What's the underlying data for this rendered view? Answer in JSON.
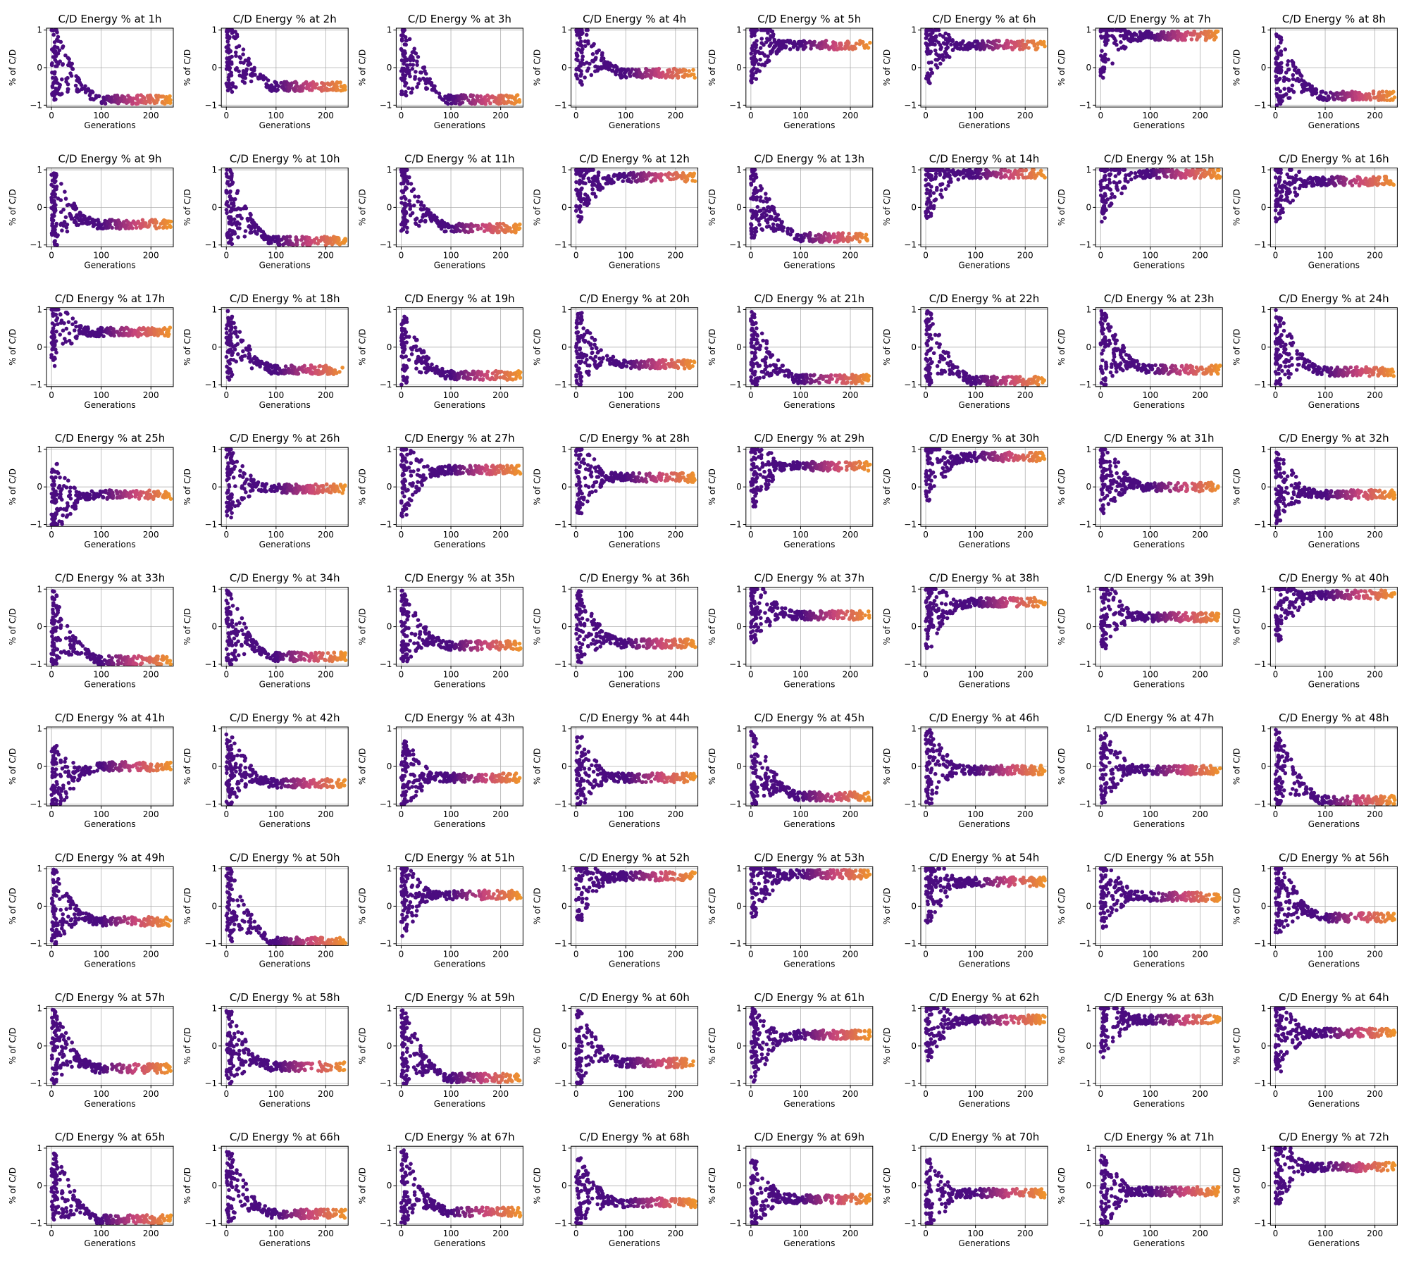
{
  "colors": {
    "early": "#4b0c80",
    "mid": "#c8467a",
    "late": "#f0952a"
  },
  "chart_data": {
    "type": "scatter",
    "rows": 9,
    "cols": 8,
    "shared": {
      "xlabel": "Generations",
      "ylabel": "% of C/D",
      "xlim": [
        -10,
        245
      ],
      "ylim": [
        -1.05,
        1.05
      ],
      "xticks": [
        0,
        100,
        200
      ],
      "yticks": [
        -1,
        0,
        1
      ],
      "grid": true,
      "generations": 240
    },
    "panels": [
      {
        "title": "C/D Energy % at 1h",
        "start": 0.2,
        "end": -0.85
      },
      {
        "title": "C/D Energy % at 2h",
        "start": 0.4,
        "end": -0.5
      },
      {
        "title": "C/D Energy % at 3h",
        "start": 0.3,
        "end": -0.85
      },
      {
        "title": "C/D Energy % at 4h",
        "start": 0.6,
        "end": -0.15
      },
      {
        "title": "C/D Energy % at 5h",
        "start": 0.6,
        "end": 0.6
      },
      {
        "title": "C/D Energy % at 6h",
        "start": 0.55,
        "end": 0.6
      },
      {
        "title": "C/D Energy % at 7h",
        "start": 0.7,
        "end": 0.85
      },
      {
        "title": "C/D Energy % at 8h",
        "start": 0.0,
        "end": -0.75
      },
      {
        "title": "C/D Energy % at 9h",
        "start": 0.0,
        "end": -0.45
      },
      {
        "title": "C/D Energy % at 10h",
        "start": 0.1,
        "end": -0.9
      },
      {
        "title": "C/D Energy % at 11h",
        "start": 0.3,
        "end": -0.55
      },
      {
        "title": "C/D Energy % at 12h",
        "start": 0.6,
        "end": 0.8
      },
      {
        "title": "C/D Energy % at 13h",
        "start": 0.2,
        "end": -0.8
      },
      {
        "title": "C/D Energy % at 14h",
        "start": 0.7,
        "end": 0.9
      },
      {
        "title": "C/D Energy % at 15h",
        "start": 0.6,
        "end": 0.9
      },
      {
        "title": "C/D Energy % at 16h",
        "start": 0.6,
        "end": 0.7
      },
      {
        "title": "C/D Energy % at 17h",
        "start": 0.5,
        "end": 0.4
      },
      {
        "title": "C/D Energy % at 18h",
        "start": 0.0,
        "end": -0.6
      },
      {
        "title": "C/D Energy % at 19h",
        "start": 0.0,
        "end": -0.75
      },
      {
        "title": "C/D Energy % at 20h",
        "start": 0.0,
        "end": -0.45
      },
      {
        "title": "C/D Energy % at 21h",
        "start": 0.0,
        "end": -0.85
      },
      {
        "title": "C/D Energy % at 22h",
        "start": 0.0,
        "end": -0.9
      },
      {
        "title": "C/D Energy % at 23h",
        "start": 0.0,
        "end": -0.6
      },
      {
        "title": "C/D Energy % at 24h",
        "start": 0.0,
        "end": -0.65
      },
      {
        "title": "C/D Energy % at 25h",
        "start": -0.4,
        "end": -0.2
      },
      {
        "title": "C/D Energy % at 26h",
        "start": 0.2,
        "end": -0.05
      },
      {
        "title": "C/D Energy % at 27h",
        "start": 0.2,
        "end": 0.45
      },
      {
        "title": "C/D Energy % at 28h",
        "start": 0.3,
        "end": 0.25
      },
      {
        "title": "C/D Energy % at 29h",
        "start": 0.45,
        "end": 0.55
      },
      {
        "title": "C/D Energy % at 30h",
        "start": 0.6,
        "end": 0.8
      },
      {
        "title": "C/D Energy % at 31h",
        "start": 0.3,
        "end": 0.0
      },
      {
        "title": "C/D Energy % at 32h",
        "start": 0.0,
        "end": -0.2
      },
      {
        "title": "C/D Energy % at 33h",
        "start": 0.0,
        "end": -0.9
      },
      {
        "title": "C/D Energy % at 34h",
        "start": 0.0,
        "end": -0.8
      },
      {
        "title": "C/D Energy % at 35h",
        "start": 0.0,
        "end": -0.5
      },
      {
        "title": "C/D Energy % at 36h",
        "start": 0.0,
        "end": -0.45
      },
      {
        "title": "C/D Energy % at 37h",
        "start": 0.6,
        "end": 0.3
      },
      {
        "title": "C/D Energy % at 38h",
        "start": 0.4,
        "end": 0.65
      },
      {
        "title": "C/D Energy % at 39h",
        "start": 0.4,
        "end": 0.25
      },
      {
        "title": "C/D Energy % at 40h",
        "start": 0.6,
        "end": 0.85
      },
      {
        "title": "C/D Energy % at 41h",
        "start": -0.5,
        "end": 0.0
      },
      {
        "title": "C/D Energy % at 42h",
        "start": 0.0,
        "end": -0.45
      },
      {
        "title": "C/D Energy % at 43h",
        "start": -0.2,
        "end": -0.3
      },
      {
        "title": "C/D Energy % at 44h",
        "start": -0.2,
        "end": -0.3
      },
      {
        "title": "C/D Energy % at 45h",
        "start": 0.0,
        "end": -0.8
      },
      {
        "title": "C/D Energy % at 46h",
        "start": 0.0,
        "end": -0.1
      },
      {
        "title": "C/D Energy % at 47h",
        "start": 0.0,
        "end": -0.1
      },
      {
        "title": "C/D Energy % at 48h",
        "start": 0.0,
        "end": -0.9
      },
      {
        "title": "C/D Energy % at 49h",
        "start": 0.0,
        "end": -0.4
      },
      {
        "title": "C/D Energy % at 50h",
        "start": 0.2,
        "end": -0.95
      },
      {
        "title": "C/D Energy % at 51h",
        "start": 0.2,
        "end": 0.3
      },
      {
        "title": "C/D Energy % at 52h",
        "start": 0.6,
        "end": 0.8
      },
      {
        "title": "C/D Energy % at 53h",
        "start": 0.7,
        "end": 0.85
      },
      {
        "title": "C/D Energy % at 54h",
        "start": 0.55,
        "end": 0.65
      },
      {
        "title": "C/D Energy % at 55h",
        "start": 0.4,
        "end": 0.25
      },
      {
        "title": "C/D Energy % at 56h",
        "start": 0.3,
        "end": -0.3
      },
      {
        "title": "C/D Energy % at 57h",
        "start": 0.0,
        "end": -0.6
      },
      {
        "title": "C/D Energy % at 58h",
        "start": 0.0,
        "end": -0.55
      },
      {
        "title": "C/D Energy % at 59h",
        "start": 0.0,
        "end": -0.85
      },
      {
        "title": "C/D Energy % at 60h",
        "start": 0.0,
        "end": -0.45
      },
      {
        "title": "C/D Energy % at 61h",
        "start": 0.0,
        "end": 0.3
      },
      {
        "title": "C/D Energy % at 62h",
        "start": 0.6,
        "end": 0.7
      },
      {
        "title": "C/D Energy % at 63h",
        "start": 0.7,
        "end": 0.7
      },
      {
        "title": "C/D Energy % at 64h",
        "start": 0.3,
        "end": 0.35
      },
      {
        "title": "C/D Energy % at 65h",
        "start": 0.0,
        "end": -0.9
      },
      {
        "title": "C/D Energy % at 66h",
        "start": 0.0,
        "end": -0.75
      },
      {
        "title": "C/D Energy % at 67h",
        "start": 0.0,
        "end": -0.7
      },
      {
        "title": "C/D Energy % at 68h",
        "start": -0.2,
        "end": -0.45
      },
      {
        "title": "C/D Energy % at 69h",
        "start": -0.3,
        "end": -0.35
      },
      {
        "title": "C/D Energy % at 70h",
        "start": -0.3,
        "end": -0.2
      },
      {
        "title": "C/D Energy % at 71h",
        "start": -0.2,
        "end": -0.15
      },
      {
        "title": "C/D Energy % at 72h",
        "start": 0.5,
        "end": 0.5
      }
    ]
  }
}
